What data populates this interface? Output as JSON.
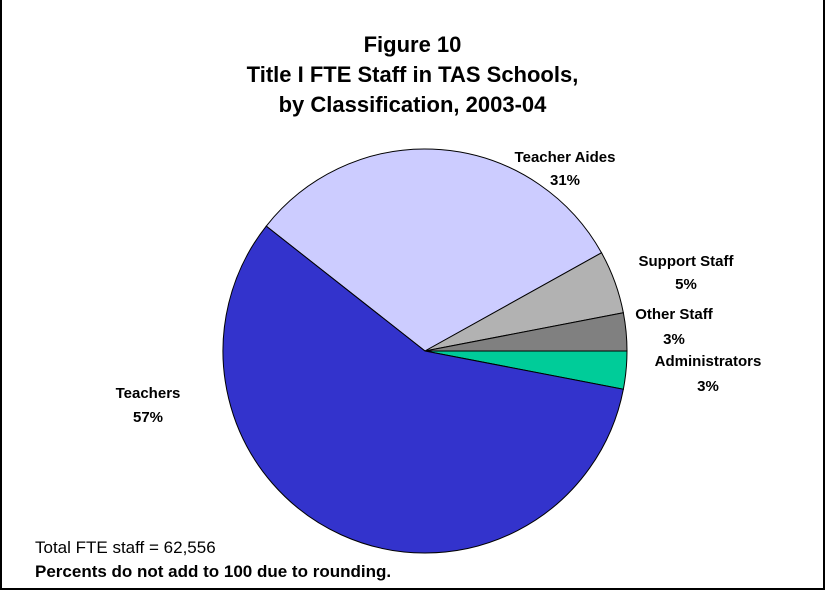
{
  "chart_data": {
    "type": "pie",
    "title_lines": [
      "Figure 10",
      "Title I FTE Staff in TAS Schools,",
      "by Classification, 2003-04"
    ],
    "slices": [
      {
        "label": "Teacher Aides",
        "percent_label": "31%",
        "value": 31,
        "color": "#ccccff"
      },
      {
        "label": "Support Staff",
        "percent_label": "5%",
        "value": 5,
        "color": "#b2b2b2"
      },
      {
        "label": "Other Staff",
        "percent_label": "3%",
        "value": 3,
        "color": "#808080"
      },
      {
        "label": "Administrators",
        "percent_label": "3%",
        "value": 3,
        "color": "#00cc99"
      },
      {
        "label": "Teachers",
        "percent_label": "57%",
        "value": 57,
        "color": "#3333cc"
      }
    ]
  },
  "notes": {
    "total": "Total FTE staff = 62,556",
    "rounding": "Percents do not add to 100 due to rounding."
  }
}
